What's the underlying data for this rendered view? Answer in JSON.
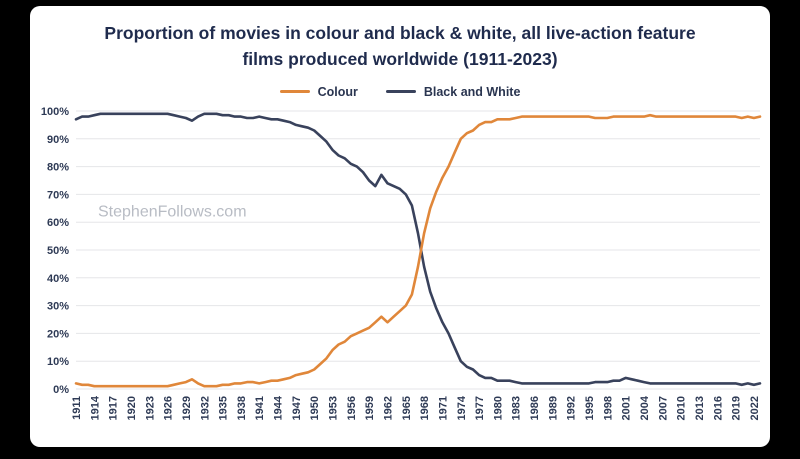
{
  "watermark": "StephenFollows.com",
  "chart_data": {
    "type": "line",
    "title": "Proportion of movies in colour and black & white, all live-action feature films produced worldwide (1911-2023)",
    "xlabel": "",
    "ylabel": "",
    "ylim": [
      0,
      100
    ],
    "grid": true,
    "legend_position": "top",
    "x": [
      1911,
      1912,
      1913,
      1914,
      1915,
      1916,
      1917,
      1918,
      1919,
      1920,
      1921,
      1922,
      1923,
      1924,
      1925,
      1926,
      1927,
      1928,
      1929,
      1930,
      1931,
      1932,
      1933,
      1934,
      1935,
      1936,
      1937,
      1938,
      1939,
      1940,
      1941,
      1942,
      1943,
      1944,
      1945,
      1946,
      1947,
      1948,
      1949,
      1950,
      1951,
      1952,
      1953,
      1954,
      1955,
      1956,
      1957,
      1958,
      1959,
      1960,
      1961,
      1962,
      1963,
      1964,
      1965,
      1966,
      1967,
      1968,
      1969,
      1970,
      1971,
      1972,
      1973,
      1974,
      1975,
      1976,
      1977,
      1978,
      1979,
      1980,
      1981,
      1982,
      1983,
      1984,
      1985,
      1986,
      1987,
      1988,
      1989,
      1990,
      1991,
      1992,
      1993,
      1994,
      1995,
      1996,
      1997,
      1998,
      1999,
      2000,
      2001,
      2002,
      2003,
      2004,
      2005,
      2006,
      2007,
      2008,
      2009,
      2010,
      2011,
      2012,
      2013,
      2014,
      2015,
      2016,
      2017,
      2018,
      2019,
      2020,
      2021,
      2022,
      2023
    ],
    "x_tick_labels": [
      1911,
      1914,
      1917,
      1920,
      1923,
      1926,
      1929,
      1932,
      1935,
      1938,
      1941,
      1944,
      1947,
      1950,
      1953,
      1956,
      1959,
      1962,
      1965,
      1968,
      1971,
      1974,
      1977,
      1980,
      1983,
      1986,
      1989,
      1992,
      1995,
      1998,
      2001,
      2004,
      2007,
      2010,
      2013,
      2016,
      2019,
      2022
    ],
    "y_tick_labels": [
      "0%",
      "10%",
      "20%",
      "30%",
      "40%",
      "50%",
      "60%",
      "70%",
      "80%",
      "90%",
      "100%"
    ],
    "series": [
      {
        "name": "Colour",
        "color": "#E0873A",
        "values": [
          2,
          1.5,
          1.5,
          1,
          1,
          1,
          1,
          1,
          1,
          1,
          1,
          1,
          1,
          1,
          1,
          1,
          1.5,
          2,
          2.5,
          3.5,
          2,
          1,
          1,
          1,
          1.5,
          1.5,
          2,
          2,
          2.5,
          2.5,
          2,
          2.5,
          3,
          3,
          3.5,
          4,
          5,
          5.5,
          6,
          7,
          9,
          11,
          14,
          16,
          17,
          19,
          20,
          21,
          22,
          24,
          26,
          24,
          26,
          28,
          30,
          34,
          44,
          56,
          65,
          71,
          76,
          80,
          85,
          90,
          92,
          93,
          95,
          96,
          96,
          97,
          97,
          97,
          97.5,
          98,
          98,
          98,
          98,
          98,
          98,
          98,
          98,
          98,
          98,
          98,
          98,
          97.5,
          97.5,
          97.5,
          98,
          98,
          98,
          98,
          98,
          98,
          98.5,
          98,
          98,
          98,
          98,
          98,
          98,
          98,
          98,
          98,
          98,
          98,
          98,
          98,
          98,
          97.5,
          98,
          97.5,
          98
        ]
      },
      {
        "name": "Black and White",
        "color": "#39425C",
        "values": [
          97,
          98,
          98,
          98.5,
          99,
          99,
          99,
          99,
          99,
          99,
          99,
          99,
          99,
          99,
          99,
          99,
          98.5,
          98,
          97.5,
          96.5,
          98,
          99,
          99,
          99,
          98.5,
          98.5,
          98,
          98,
          97.5,
          97.5,
          98,
          97.5,
          97,
          97,
          96.5,
          96,
          95,
          94.5,
          94,
          93,
          91,
          89,
          86,
          84,
          83,
          81,
          80,
          78,
          75,
          73,
          77,
          74,
          73,
          72,
          70,
          66,
          56,
          44,
          35,
          29,
          24,
          20,
          15,
          10,
          8,
          7,
          5,
          4,
          4,
          3,
          3,
          3,
          2.5,
          2,
          2,
          2,
          2,
          2,
          2,
          2,
          2,
          2,
          2,
          2,
          2,
          2.5,
          2.5,
          2.5,
          3,
          3,
          4,
          3.5,
          3,
          2.5,
          2,
          2,
          2,
          2,
          2,
          2,
          2,
          2,
          2,
          2,
          2,
          2,
          2,
          2,
          2,
          1.5,
          2,
          1.5,
          2
        ]
      }
    ]
  }
}
